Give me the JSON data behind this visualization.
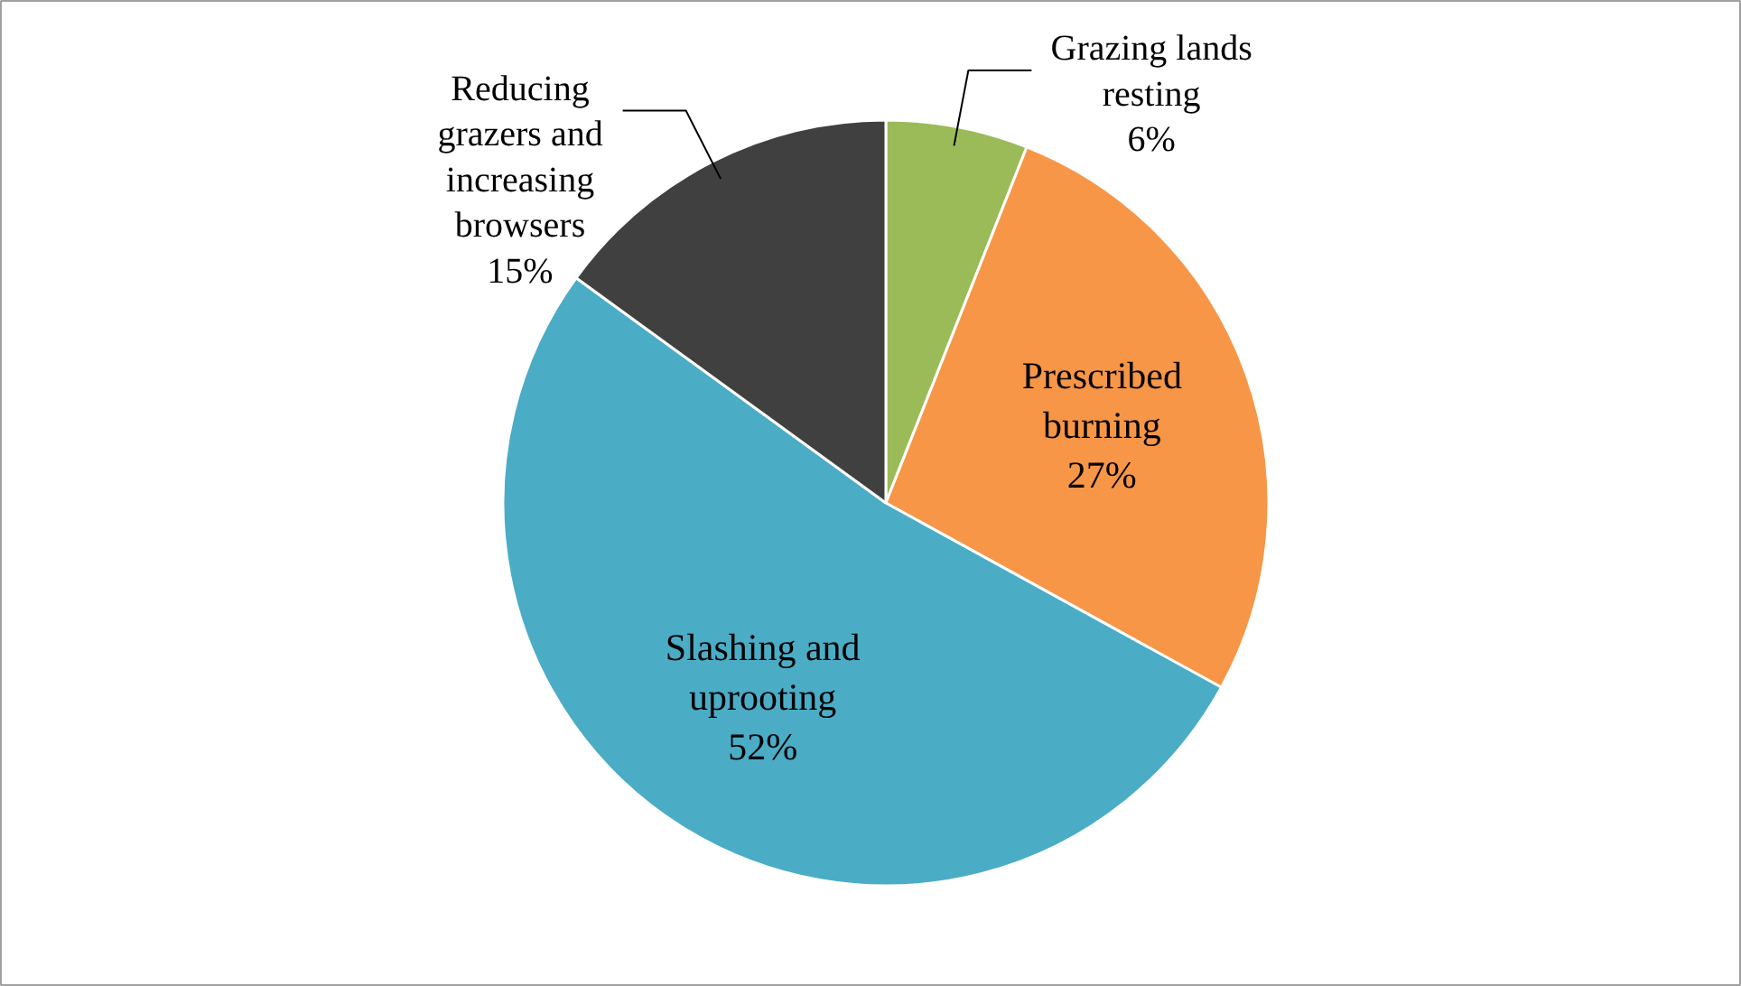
{
  "chart_data": {
    "type": "pie",
    "categories": [
      "Grazing lands resting",
      "Prescribed burning",
      "Slashing and uprooting",
      "Reducing grazers and increasing browsers"
    ],
    "values": [
      6,
      27,
      52,
      15
    ],
    "colors": [
      "#9bbb59",
      "#f79646",
      "#4bacc6",
      "#404040"
    ],
    "value_labels": [
      "6%",
      "27%",
      "52%",
      "15%"
    ]
  }
}
